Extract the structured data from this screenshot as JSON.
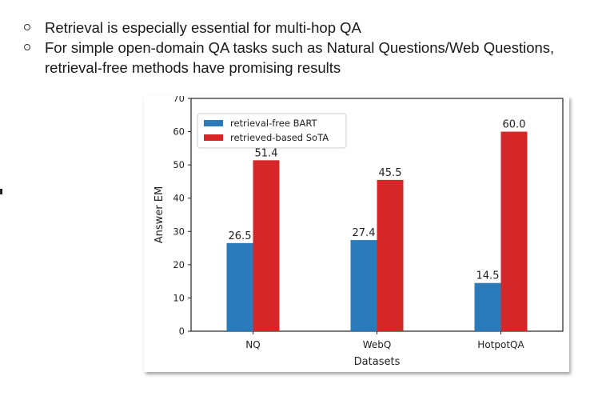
{
  "slide": {
    "bullets": [
      "Retrieval is especially essential for multi-hop QA",
      "For simple open-domain QA tasks such as Natural Questions/Web Questions, retrieval-free methods have promising results"
    ]
  },
  "chart_data": {
    "type": "bar",
    "categories": [
      "NQ",
      "WebQ",
      "HotpotQA"
    ],
    "series": [
      {
        "name": "retrieval-free BART",
        "color": "#2b7bba",
        "values": [
          26.5,
          27.4,
          14.5
        ]
      },
      {
        "name": "retrieved-based SoTA",
        "color": "#d62728",
        "values": [
          51.4,
          45.5,
          60.0
        ]
      }
    ],
    "value_labels": [
      [
        "26.5",
        "27.4",
        "14.5"
      ],
      [
        "51.4",
        "45.5",
        "60.0"
      ]
    ],
    "xlabel": "Datasets",
    "ylabel": "Answer EM",
    "ylim": [
      0,
      70
    ],
    "yticks": [
      "0",
      "10",
      "20",
      "30",
      "40",
      "50",
      "60",
      "70"
    ],
    "legend_position": "top-left",
    "grid": false
  }
}
